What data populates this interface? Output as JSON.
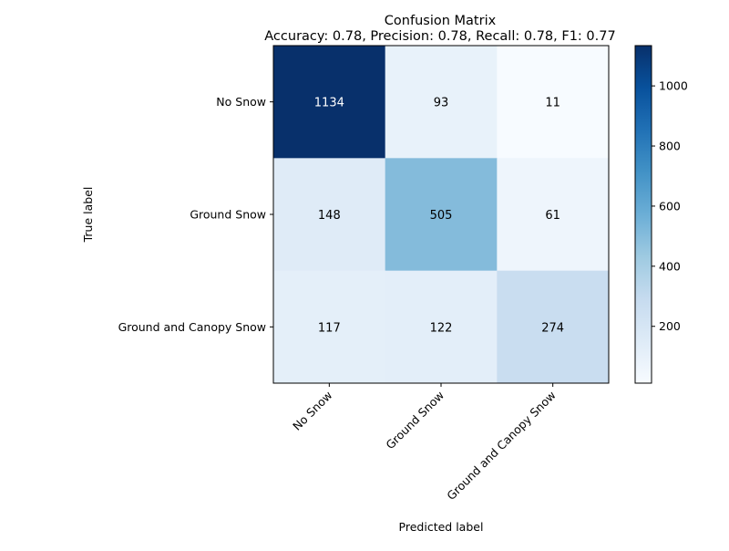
{
  "chart_data": {
    "type": "heatmap",
    "title": "Confusion Matrix",
    "subtitle": "Accuracy: 0.78, Precision: 0.78, Recall: 0.78, F1: 0.77",
    "xlabel": "Predicted label",
    "ylabel": "True label",
    "x_categories": [
      "No Snow",
      "Ground Snow",
      "Ground and Canopy Snow"
    ],
    "y_categories": [
      "No Snow",
      "Ground Snow",
      "Ground and Canopy Snow"
    ],
    "matrix": [
      [
        1134,
        93,
        11
      ],
      [
        148,
        505,
        61
      ],
      [
        117,
        122,
        274
      ]
    ],
    "colormap": "Blues",
    "colorbar": {
      "min": 11,
      "max": 1134,
      "ticks": [
        200,
        400,
        600,
        800,
        1000
      ]
    },
    "cell_text_colors": {
      "light": "#ffffff",
      "dark": "#000000"
    }
  }
}
